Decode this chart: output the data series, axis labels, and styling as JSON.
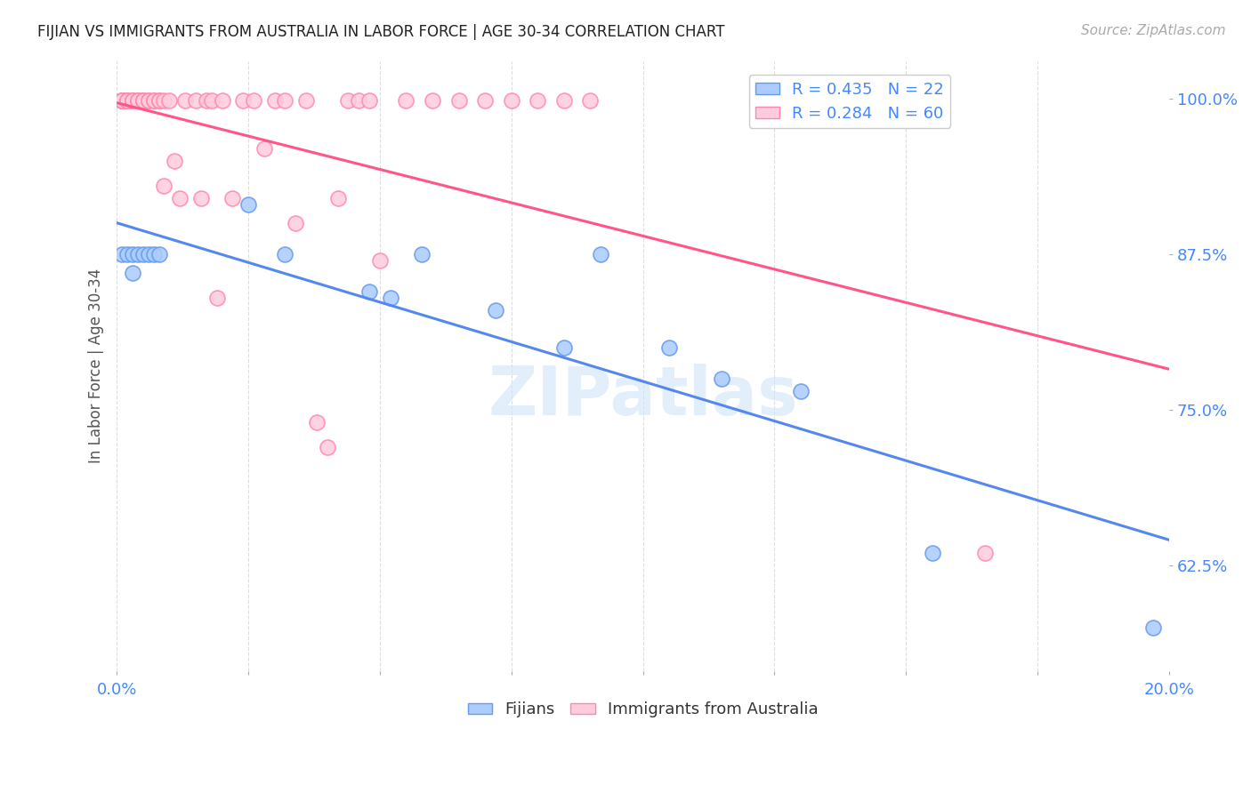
{
  "title": "FIJIAN VS IMMIGRANTS FROM AUSTRALIA IN LABOR FORCE | AGE 30-34 CORRELATION CHART",
  "source": "Source: ZipAtlas.com",
  "ylabel": "In Labor Force | Age 30-34",
  "xlim": [
    0.0,
    0.2
  ],
  "ylim": [
    0.54,
    1.03
  ],
  "yticks": [
    0.625,
    0.75,
    0.875,
    1.0
  ],
  "ytick_labels": [
    "62.5%",
    "75.0%",
    "87.5%",
    "100.0%"
  ],
  "xticks": [
    0.0,
    0.025,
    0.05,
    0.075,
    0.1,
    0.125,
    0.15,
    0.175,
    0.2
  ],
  "xtick_labels": [
    "0.0%",
    "",
    "",
    "",
    "",
    "",
    "",
    "",
    "20.0%"
  ],
  "fijian_color": "#aaccff",
  "fijian_edge_color": "#6699ee",
  "immigrant_color": "#ffccdd",
  "immigrant_edge_color": "#ff88aa",
  "fijian_line_color": "#5588ee",
  "immigrant_line_color": "#ff5588",
  "legend_fijian_label": "R = 0.435   N = 22",
  "legend_immigrant_label": "R = 0.284   N = 60",
  "watermark": "ZIPatlas",
  "fijian_x": [
    0.001,
    0.002,
    0.003,
    0.003,
    0.004,
    0.005,
    0.006,
    0.007,
    0.008,
    0.025,
    0.032,
    0.048,
    0.052,
    0.058,
    0.072,
    0.085,
    0.092,
    0.105,
    0.115,
    0.13,
    0.155,
    0.197
  ],
  "fijian_y": [
    0.875,
    0.875,
    0.875,
    0.86,
    0.875,
    0.875,
    0.875,
    0.875,
    0.875,
    0.915,
    0.875,
    0.845,
    0.84,
    0.875,
    0.83,
    0.8,
    0.875,
    0.8,
    0.775,
    0.765,
    0.635,
    0.575
  ],
  "immigrant_x": [
    0.001,
    0.001,
    0.001,
    0.001,
    0.001,
    0.001,
    0.002,
    0.002,
    0.002,
    0.003,
    0.003,
    0.003,
    0.004,
    0.004,
    0.004,
    0.005,
    0.005,
    0.005,
    0.006,
    0.006,
    0.007,
    0.007,
    0.008,
    0.008,
    0.009,
    0.009,
    0.01,
    0.011,
    0.012,
    0.013,
    0.015,
    0.016,
    0.017,
    0.018,
    0.019,
    0.02,
    0.022,
    0.024,
    0.026,
    0.028,
    0.03,
    0.032,
    0.034,
    0.036,
    0.038,
    0.04,
    0.042,
    0.044,
    0.046,
    0.048,
    0.05,
    0.055,
    0.06,
    0.065,
    0.07,
    0.075,
    0.08,
    0.085,
    0.09,
    0.165
  ],
  "immigrant_y": [
    0.998,
    0.998,
    0.998,
    0.998,
    0.998,
    0.998,
    0.998,
    0.998,
    0.998,
    0.998,
    0.998,
    0.998,
    0.998,
    0.998,
    0.998,
    0.998,
    0.998,
    0.998,
    0.998,
    0.998,
    0.998,
    0.998,
    0.998,
    0.998,
    0.93,
    0.998,
    0.998,
    0.95,
    0.92,
    0.998,
    0.998,
    0.92,
    0.998,
    0.998,
    0.84,
    0.998,
    0.92,
    0.998,
    0.998,
    0.96,
    0.998,
    0.998,
    0.9,
    0.998,
    0.74,
    0.72,
    0.92,
    0.998,
    0.998,
    0.998,
    0.87,
    0.998,
    0.998,
    0.998,
    0.998,
    0.998,
    0.998,
    0.998,
    0.998,
    0.635
  ],
  "title_color": "#222222",
  "axis_color": "#4488ff",
  "grid_color": "#dddddd",
  "background_color": "#ffffff"
}
